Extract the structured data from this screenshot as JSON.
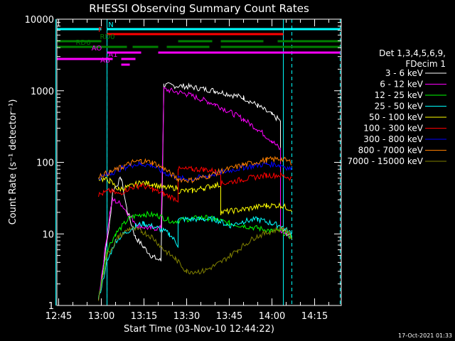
{
  "chart_data": {
    "type": "line",
    "title": "RHESSI Observing Summary Count Rates",
    "xlabel": "Start Time (03-Nov-10 12:44:22)",
    "ylabel": "Count Rate (s⁻¹ detector⁻¹)",
    "y_scale": "log",
    "ylim": [
      1,
      10000
    ],
    "xlim": [
      "12:44",
      "14:24"
    ],
    "x_ticks": [
      "12:45",
      "13:00",
      "13:15",
      "13:30",
      "13:45",
      "14:00",
      "14:15"
    ],
    "y_ticks": [
      {
        "value": 1,
        "label": "1"
      },
      {
        "value": 10,
        "label": "10"
      },
      {
        "value": 100,
        "label": "100"
      },
      {
        "value": 1000,
        "label": "1000"
      },
      {
        "value": 10000,
        "label": "10000"
      }
    ],
    "legend_position": "right",
    "legend_header": [
      "Det 1,3,4,5,6,9,",
      "FDecim 1"
    ],
    "series": [
      {
        "name": "3 - 6 keV",
        "color": "#ffffff",
        "points": [
          [
            "12:59",
            1.2
          ],
          [
            "13:03",
            15
          ],
          [
            "13:04",
            40
          ],
          [
            "13:07",
            60
          ],
          [
            "13:09",
            22
          ],
          [
            "13:12",
            9
          ],
          [
            "13:15",
            6.5
          ],
          [
            "13:18",
            4.8
          ],
          [
            "13:21",
            4.2
          ],
          [
            "13:22",
            1200
          ],
          [
            "13:30",
            1150
          ],
          [
            "13:40",
            1000
          ],
          [
            "13:50",
            800
          ],
          [
            "13:55",
            620
          ],
          [
            "14:00",
            460
          ],
          [
            "14:03",
            380
          ],
          [
            "14:03",
            12
          ],
          [
            "14:07",
            9
          ]
        ]
      },
      {
        "name": "6 - 12 keV",
        "color": "#ff00ff",
        "points": [
          [
            "12:59",
            1.2
          ],
          [
            "13:03",
            20
          ],
          [
            "13:04",
            30
          ],
          [
            "13:07",
            26
          ],
          [
            "13:10",
            18
          ],
          [
            "13:13",
            13
          ],
          [
            "13:17",
            12
          ],
          [
            "13:21",
            12
          ],
          [
            "13:22",
            1050
          ],
          [
            "13:30",
            900
          ],
          [
            "13:40",
            650
          ],
          [
            "13:50",
            400
          ],
          [
            "13:55",
            290
          ],
          [
            "14:00",
            200
          ],
          [
            "14:03",
            150
          ],
          [
            "14:03",
            11
          ],
          [
            "14:07",
            9
          ]
        ]
      },
      {
        "name": "12 - 25 keV",
        "color": "#00ff00",
        "points": [
          [
            "12:59",
            1.2
          ],
          [
            "13:02",
            6
          ],
          [
            "13:05",
            10
          ],
          [
            "13:10",
            17
          ],
          [
            "13:15",
            19
          ],
          [
            "13:20",
            18
          ],
          [
            "13:25",
            15
          ],
          [
            "13:30",
            16
          ],
          [
            "13:36",
            17
          ],
          [
            "13:40",
            16
          ],
          [
            "13:45",
            14
          ],
          [
            "13:50",
            13
          ],
          [
            "13:55",
            12
          ],
          [
            "14:00",
            11
          ],
          [
            "14:03",
            11
          ],
          [
            "14:07",
            9
          ]
        ]
      },
      {
        "name": "25 - 50 keV",
        "color": "#00ffff",
        "points": [
          [
            "12:59",
            1.2
          ],
          [
            "13:02",
            4
          ],
          [
            "13:05",
            8
          ],
          [
            "13:08",
            10
          ],
          [
            "13:12",
            13
          ],
          [
            "13:15",
            14
          ],
          [
            "13:20",
            12
          ],
          [
            "13:24",
            10
          ],
          [
            "13:27",
            7
          ],
          [
            "13:27",
            16
          ],
          [
            "13:36",
            16
          ],
          [
            "13:40",
            16
          ],
          [
            "13:45",
            13
          ],
          [
            "13:50",
            15
          ],
          [
            "13:55",
            16
          ],
          [
            "14:00",
            14
          ],
          [
            "14:03",
            13
          ],
          [
            "14:07",
            10
          ]
        ]
      },
      {
        "name": "50 - 100 keV",
        "color": "#ffff00",
        "points": [
          [
            "12:59",
            60
          ],
          [
            "13:03",
            55
          ],
          [
            "13:06",
            42
          ],
          [
            "13:10",
            46
          ],
          [
            "13:14",
            52
          ],
          [
            "13:18",
            50
          ],
          [
            "13:22",
            44
          ],
          [
            "13:27",
            44
          ],
          [
            "13:27",
            40
          ],
          [
            "13:32",
            40
          ],
          [
            "13:36",
            44
          ],
          [
            "13:40",
            48
          ],
          [
            "13:42",
            48
          ],
          [
            "13:42",
            20
          ],
          [
            "13:50",
            22
          ],
          [
            "13:58",
            25
          ],
          [
            "14:03",
            25
          ],
          [
            "14:07",
            22
          ]
        ]
      },
      {
        "name": "100 - 300 keV",
        "color": "#ff0000",
        "points": [
          [
            "12:59",
            35
          ],
          [
            "13:03",
            40
          ],
          [
            "13:06",
            36
          ],
          [
            "13:10",
            44
          ],
          [
            "13:14",
            48
          ],
          [
            "13:18",
            42
          ],
          [
            "13:22",
            36
          ],
          [
            "13:27",
            30
          ],
          [
            "13:27",
            80
          ],
          [
            "13:32",
            80
          ],
          [
            "13:36",
            80
          ],
          [
            "13:40",
            75
          ],
          [
            "13:42",
            72
          ],
          [
            "13:42",
            50
          ],
          [
            "13:50",
            58
          ],
          [
            "13:58",
            66
          ],
          [
            "14:03",
            66
          ],
          [
            "14:07",
            60
          ]
        ]
      },
      {
        "name": "300 - 800 keV",
        "color": "#0000ff",
        "points": [
          [
            "12:59",
            60
          ],
          [
            "13:03",
            70
          ],
          [
            "13:07",
            82
          ],
          [
            "13:11",
            92
          ],
          [
            "13:14",
            95
          ],
          [
            "13:18",
            90
          ],
          [
            "13:22",
            72
          ],
          [
            "13:27",
            60
          ],
          [
            "13:32",
            58
          ],
          [
            "13:38",
            66
          ],
          [
            "13:42",
            72
          ],
          [
            "13:50",
            85
          ],
          [
            "13:58",
            95
          ],
          [
            "14:03",
            92
          ],
          [
            "14:07",
            80
          ]
        ]
      },
      {
        "name": "800 - 7000 keV",
        "color": "#ff8000",
        "points": [
          [
            "12:59",
            65
          ],
          [
            "13:03",
            72
          ],
          [
            "13:07",
            85
          ],
          [
            "13:11",
            100
          ],
          [
            "13:14",
            105
          ],
          [
            "13:18",
            100
          ],
          [
            "13:22",
            82
          ],
          [
            "13:27",
            58
          ],
          [
            "13:32",
            56
          ],
          [
            "13:38",
            65
          ],
          [
            "13:42",
            75
          ],
          [
            "13:50",
            92
          ],
          [
            "13:58",
            108
          ],
          [
            "14:03",
            112
          ],
          [
            "14:07",
            100
          ]
        ]
      },
      {
        "name": "7000 - 15000 keV",
        "color": "#808000",
        "points": [
          [
            "12:59",
            1.2
          ],
          [
            "13:02",
            5
          ],
          [
            "13:06",
            9
          ],
          [
            "13:10",
            12
          ],
          [
            "13:14",
            11
          ],
          [
            "13:18",
            9
          ],
          [
            "13:22",
            6
          ],
          [
            "13:26",
            4.5
          ],
          [
            "13:30",
            3
          ],
          [
            "13:36",
            3
          ],
          [
            "13:42",
            4
          ],
          [
            "13:48",
            6
          ],
          [
            "13:54",
            9
          ],
          [
            "14:00",
            11
          ],
          [
            "14:04",
            12
          ],
          [
            "14:07",
            9
          ]
        ]
      }
    ],
    "flags": [
      {
        "label": "N",
        "color": "#00ffff",
        "segments": [
          [
            "12:44",
            "13:00"
          ],
          [
            "13:02",
            "14:04"
          ],
          [
            "14:04",
            "14:24"
          ]
        ]
      },
      {
        "label": "F",
        "color": "#ff0000",
        "segments": [
          [
            "13:02",
            "14:04"
          ]
        ]
      },
      {
        "label": "RD0",
        "color": "#008000",
        "segments": [
          [
            "12:44",
            "13:00"
          ],
          [
            "13:27",
            "13:39"
          ],
          [
            "13:42",
            "13:57"
          ],
          [
            "14:02",
            "14:24"
          ]
        ]
      },
      {
        "label": "RD6",
        "color": "#008000",
        "segments": [
          [
            "12:44",
            "13:09"
          ],
          [
            "13:11",
            "13:20"
          ],
          [
            "13:23",
            "13:38"
          ],
          [
            "13:42",
            "14:24"
          ]
        ]
      },
      {
        "label": "AO",
        "color": "#ff00ff",
        "segments": [
          [
            "13:02",
            "13:14"
          ],
          [
            "13:20",
            "14:24"
          ]
        ]
      },
      {
        "label": "A1",
        "color": "#ff00ff",
        "segments": [
          [
            "12:44",
            "13:04"
          ],
          [
            "13:07",
            "13:12"
          ]
        ]
      },
      {
        "label": "AB",
        "color": "#ff00ff",
        "segments": [
          [
            "13:07",
            "13:10"
          ]
        ]
      }
    ],
    "saa_markers": [
      "12:44",
      "13:02",
      "14:04"
    ],
    "night_markers": [
      "13:02",
      "14:07",
      "14:24"
    ],
    "timestamp": "17-Oct-2021 01:33"
  }
}
